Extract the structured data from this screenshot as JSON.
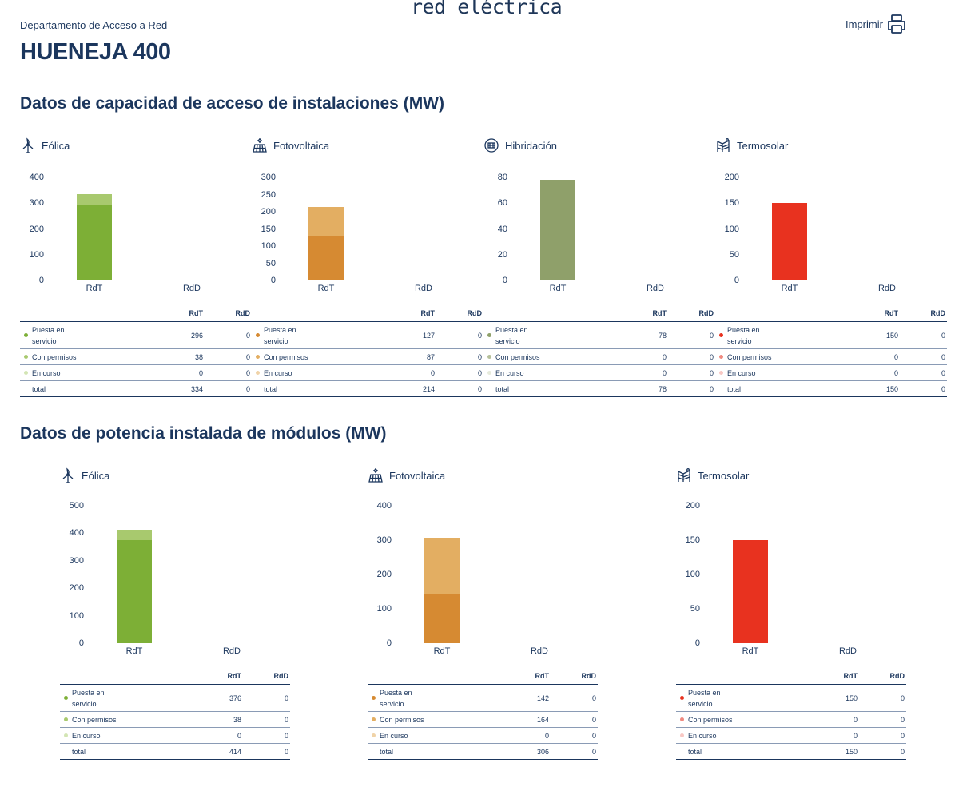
{
  "header": {
    "logo": "red eléctrica",
    "department": "Departamento de Acceso a Red",
    "title": "HUENEJA 400",
    "print_label": "Imprimir",
    "print_icon": "printer-icon"
  },
  "sections": [
    {
      "title": "Datos de capacidad de acceso de instalaciones (MW)",
      "panels": [
        {
          "name": "Eólica",
          "icon": "wind-turbine-icon",
          "ymax": 400,
          "ystep": 100,
          "colors": [
            "#7daf36",
            "#a8c96e",
            "#d3e5b4"
          ],
          "categories": [
            "RdT",
            "RdD"
          ],
          "rows": [
            {
              "label": "Puesta en servicio",
              "RdT": 296,
              "RdD": 0
            },
            {
              "label": "Con permisos",
              "RdT": 38,
              "RdD": 0
            },
            {
              "label": "En curso",
              "RdT": 0,
              "RdD": 0
            }
          ],
          "total": {
            "label": "total",
            "RdT": 334,
            "RdD": 0
          }
        },
        {
          "name": "Fotovoltaica",
          "icon": "solar-panel-icon",
          "ymax": 300,
          "ystep": 50,
          "colors": [
            "#d68a32",
            "#e3ae62",
            "#f0d3a8"
          ],
          "categories": [
            "RdT",
            "RdD"
          ],
          "rows": [
            {
              "label": "Puesta en servicio",
              "RdT": 127,
              "RdD": 0
            },
            {
              "label": "Con permisos",
              "RdT": 87,
              "RdD": 0
            },
            {
              "label": "En curso",
              "RdT": 0,
              "RdD": 0
            }
          ],
          "total": {
            "label": "total",
            "RdT": 214,
            "RdD": 0
          }
        },
        {
          "name": "Hibridación",
          "icon": "hybrid-icon",
          "ymax": 80,
          "ystep": 20,
          "colors": [
            "#8fa06a",
            "#b5c09a",
            "#e6eadb"
          ],
          "categories": [
            "RdT",
            "RdD"
          ],
          "rows": [
            {
              "label": "Puesta en servicio",
              "RdT": 78,
              "RdD": 0
            },
            {
              "label": "Con permisos",
              "RdT": 0,
              "RdD": 0
            },
            {
              "label": "En curso",
              "RdT": 0,
              "RdD": 0
            }
          ],
          "total": {
            "label": "total",
            "RdT": 78,
            "RdD": 0
          }
        },
        {
          "name": "Termosolar",
          "icon": "solar-thermal-icon",
          "ymax": 200,
          "ystep": 50,
          "colors": [
            "#e8321f",
            "#f08a80",
            "#f8c8c4"
          ],
          "categories": [
            "RdT",
            "RdD"
          ],
          "rows": [
            {
              "label": "Puesta en servicio",
              "RdT": 150,
              "RdD": 0
            },
            {
              "label": "Con permisos",
              "RdT": 0,
              "RdD": 0
            },
            {
              "label": "En curso",
              "RdT": 0,
              "RdD": 0
            }
          ],
          "total": {
            "label": "total",
            "RdT": 150,
            "RdD": 0
          }
        }
      ]
    },
    {
      "title": "Datos de potencia instalada de módulos (MW)",
      "panels": [
        {
          "name": "Eólica",
          "icon": "wind-turbine-icon",
          "ymax": 500,
          "ystep": 100,
          "colors": [
            "#7daf36",
            "#a8c96e",
            "#d3e5b4"
          ],
          "categories": [
            "RdT",
            "RdD"
          ],
          "rows": [
            {
              "label": "Puesta en servicio",
              "RdT": 376,
              "RdD": 0
            },
            {
              "label": "Con permisos",
              "RdT": 38,
              "RdD": 0
            },
            {
              "label": "En curso",
              "RdT": 0,
              "RdD": 0
            }
          ],
          "total": {
            "label": "total",
            "RdT": 414,
            "RdD": 0
          }
        },
        {
          "name": "Fotovoltaica",
          "icon": "solar-panel-icon",
          "ymax": 400,
          "ystep": 100,
          "colors": [
            "#d68a32",
            "#e3ae62",
            "#f0d3a8"
          ],
          "categories": [
            "RdT",
            "RdD"
          ],
          "rows": [
            {
              "label": "Puesta en servicio",
              "RdT": 142,
              "RdD": 0
            },
            {
              "label": "Con permisos",
              "RdT": 164,
              "RdD": 0
            },
            {
              "label": "En curso",
              "RdT": 0,
              "RdD": 0
            }
          ],
          "total": {
            "label": "total",
            "RdT": 306,
            "RdD": 0
          }
        },
        {
          "name": "Termosolar",
          "icon": "solar-thermal-icon",
          "ymax": 200,
          "ystep": 50,
          "colors": [
            "#e8321f",
            "#f08a80",
            "#f8c8c4"
          ],
          "categories": [
            "RdT",
            "RdD"
          ],
          "rows": [
            {
              "label": "Puesta en servicio",
              "RdT": 150,
              "RdD": 0
            },
            {
              "label": "Con permisos",
              "RdT": 0,
              "RdD": 0
            },
            {
              "label": "En curso",
              "RdT": 0,
              "RdD": 0
            }
          ],
          "total": {
            "label": "total",
            "RdT": 150,
            "RdD": 0
          }
        }
      ]
    }
  ]
}
